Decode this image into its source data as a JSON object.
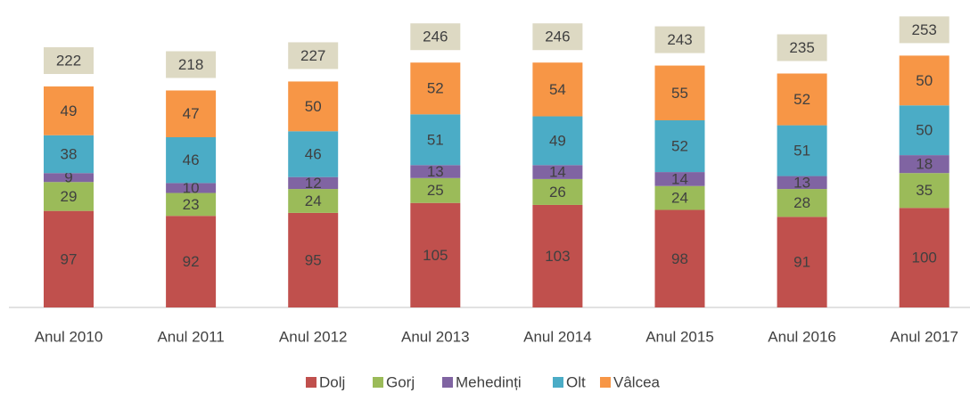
{
  "chart_data": {
    "type": "stacked_bar",
    "categories": [
      "Anul 2010",
      "Anul 2011",
      "Anul 2012",
      "Anul 2013",
      "Anul 2014",
      "Anul 2015",
      "Anul 2016",
      "Anul 2017"
    ],
    "series": [
      {
        "name": "Dolj",
        "color": "#c0504d",
        "values": [
          97,
          92,
          95,
          105,
          103,
          98,
          91,
          100
        ]
      },
      {
        "name": "Gorj",
        "color": "#9bbb59",
        "values": [
          29,
          23,
          24,
          25,
          26,
          24,
          28,
          35
        ]
      },
      {
        "name": "Mehedinți",
        "color": "#8064a2",
        "values": [
          9,
          10,
          12,
          13,
          14,
          14,
          13,
          18
        ]
      },
      {
        "name": "Olt",
        "color": "#4bacc6",
        "values": [
          38,
          46,
          46,
          51,
          49,
          52,
          51,
          50
        ]
      },
      {
        "name": "Vâlcea",
        "color": "#f79646",
        "values": [
          49,
          47,
          50,
          52,
          54,
          55,
          52,
          50
        ]
      }
    ],
    "totals": [
      222,
      218,
      227,
      246,
      246,
      243,
      235,
      253
    ],
    "legend": "bottom"
  }
}
